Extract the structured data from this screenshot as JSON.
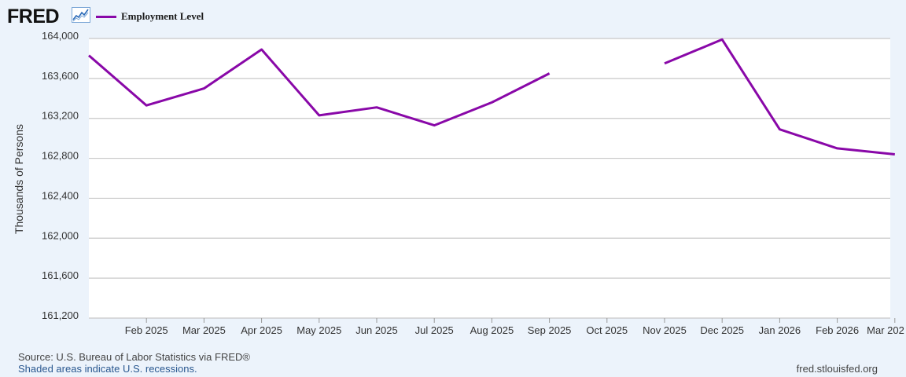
{
  "header": {
    "logo_text": "FRED",
    "logo_icon": "fred-graph-icon",
    "legend_label": "Employment Level"
  },
  "colors": {
    "series": "#8908a8",
    "grid": "#c8c8c8",
    "plot_bg": "#ffffff",
    "page_bg": "#ecf3fb"
  },
  "footer": {
    "source": "Source: U.S. Bureau of Labor Statistics via FRED®",
    "recession_note": "Shaded areas indicate U.S. recessions.",
    "site_url": "fred.stlouisfed.org"
  },
  "chart_data": {
    "type": "line",
    "ylabel": "Thousands of Persons",
    "ylim": [
      161200,
      164000
    ],
    "yticks": [
      161200,
      161600,
      162000,
      162400,
      162800,
      163200,
      163600,
      164000
    ],
    "ytick_labels": [
      "161,200",
      "161,600",
      "162,000",
      "162,400",
      "162,800",
      "163,200",
      "163,600",
      "164,000"
    ],
    "x_ticks": [
      "Feb 2025",
      "Mar 2025",
      "Apr 2025",
      "May 2025",
      "Jun 2025",
      "Jul 2025",
      "Aug 2025",
      "Sep 2025",
      "Oct 2025",
      "Nov 2025",
      "Dec 2025",
      "Jan 2026",
      "Feb 2026",
      "Mar 202"
    ],
    "grid": true,
    "legend_position": "top-left",
    "series": [
      {
        "name": "Employment Level",
        "x": [
          "Jan 2025",
          "Feb 2025",
          "Mar 2025",
          "Apr 2025",
          "May 2025",
          "Jun 2025",
          "Jul 2025",
          "Aug 2025",
          "Sep 2025",
          "Oct 2025",
          "Nov 2025",
          "Dec 2025",
          "Jan 2026",
          "Feb 2026",
          "Mar 2026"
        ],
        "values": [
          163830,
          163330,
          163500,
          163890,
          163230,
          163310,
          163130,
          163360,
          163650,
          null,
          163750,
          163990,
          163090,
          162900,
          162840
        ]
      }
    ]
  }
}
